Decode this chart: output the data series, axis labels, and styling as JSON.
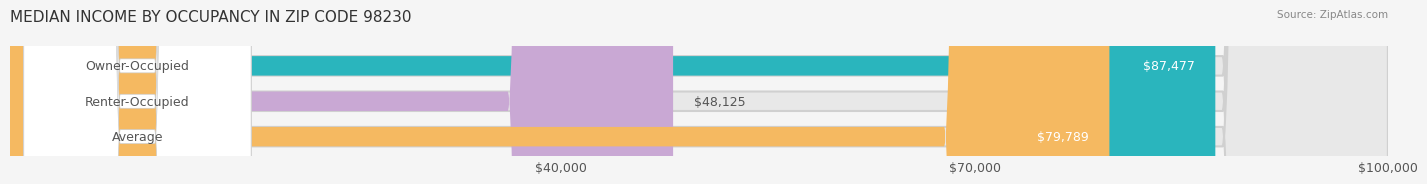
{
  "title": "MEDIAN INCOME BY OCCUPANCY IN ZIP CODE 98230",
  "source": "Source: ZipAtlas.com",
  "categories": [
    "Owner-Occupied",
    "Renter-Occupied",
    "Average"
  ],
  "values": [
    87477,
    48125,
    79789
  ],
  "labels": [
    "$87,477",
    "$48,125",
    "$79,789"
  ],
  "bar_colors": [
    "#2ab5bd",
    "#c9a8d4",
    "#f5b961"
  ],
  "bar_edge_colors": [
    "#2ab5bd",
    "#c9a8d4",
    "#f5b961"
  ],
  "xlim": [
    0,
    100000
  ],
  "xticks": [
    40000,
    70000,
    100000
  ],
  "xtick_labels": [
    "$40,000",
    "$70,000",
    "$100,000"
  ],
  "background_color": "#f5f5f5",
  "bar_bg_color": "#e8e8e8",
  "title_fontsize": 11,
  "label_fontsize": 9,
  "tick_fontsize": 9
}
